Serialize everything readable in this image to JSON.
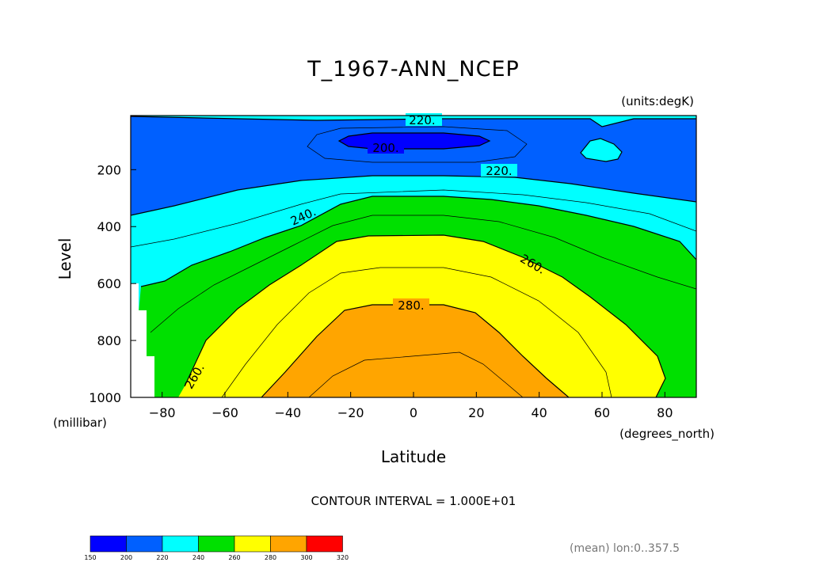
{
  "chart_data": {
    "type": "contour",
    "title": "T_1967-ANN_NCEP",
    "units_label": "(units:degK)",
    "xlabel": "Latitude",
    "x_units": "(degrees_north)",
    "ylabel": "Level",
    "y_units": "(millibar)",
    "xlim": [
      -90,
      90
    ],
    "ylim": [
      1000,
      10
    ],
    "x_ticks": [
      -80,
      -60,
      -40,
      -20,
      0,
      20,
      40,
      60,
      80
    ],
    "y_ticks": [
      200,
      400,
      600,
      800,
      1000
    ],
    "contour_interval_text": "CONTOUR INTERVAL = 1.000E+01",
    "footnote": "(mean) lon:0..357.5",
    "contour_labels": [
      "220.",
      "200.",
      "220.",
      "240.",
      "260.",
      "280.",
      "260."
    ],
    "colorbar": {
      "levels": [
        150,
        200,
        220,
        240,
        260,
        280,
        300,
        320
      ],
      "colors": [
        "#0000ff",
        "#0060ff",
        "#00ffff",
        "#00e000",
        "#ffff00",
        "#ffa500",
        "#ff0000"
      ]
    }
  }
}
